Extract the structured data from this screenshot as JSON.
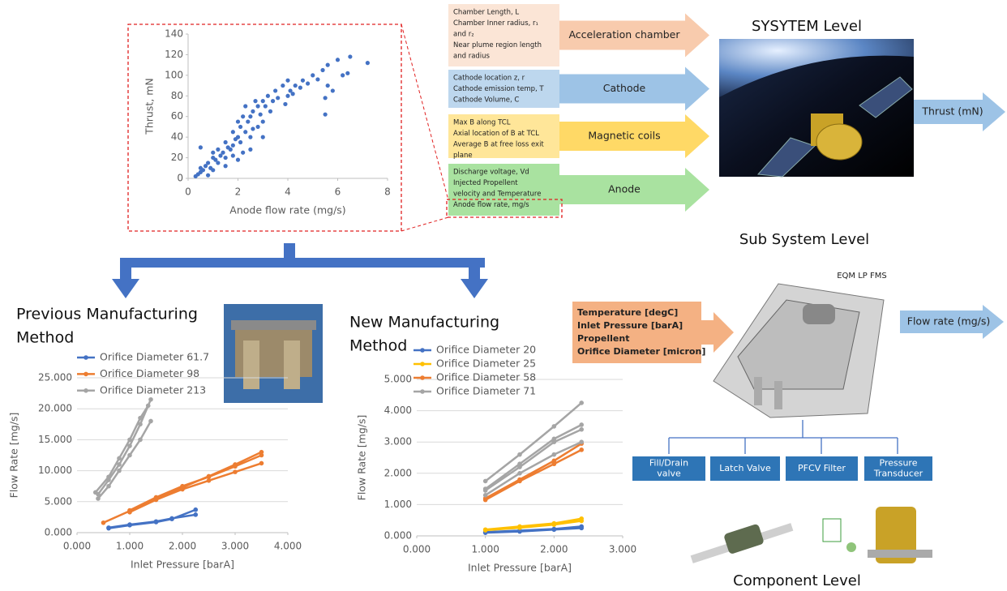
{
  "chart_data": [
    {
      "type": "scatter",
      "x_label": "Anode flow rate (mg/s)",
      "y_label": "Thrust, mN",
      "color": "#4472c4",
      "grid": false,
      "x": [
        0.3,
        0.4,
        0.5,
        0.5,
        0.6,
        0.7,
        0.8,
        0.9,
        1.0,
        1.0,
        1.1,
        1.2,
        1.2,
        1.3,
        1.4,
        1.5,
        1.5,
        1.6,
        1.7,
        1.8,
        1.8,
        1.9,
        2.0,
        2.0,
        2.1,
        2.1,
        2.2,
        2.3,
        2.3,
        2.4,
        2.5,
        2.5,
        2.6,
        2.7,
        2.8,
        2.8,
        2.9,
        3.0,
        3.0,
        3.1,
        3.2,
        3.3,
        3.4,
        3.5,
        3.6,
        3.8,
        3.9,
        4.0,
        4.0,
        4.1,
        4.2,
        4.3,
        4.5,
        4.6,
        4.8,
        5.0,
        5.2,
        5.4,
        5.5,
        5.5,
        5.6,
        5.6,
        5.8,
        6.0,
        6.2,
        6.4,
        6.5,
        7.2,
        0.5,
        0.8,
        1.0,
        1.5,
        2.0,
        2.5,
        3.0,
        2.2,
        1.8,
        2.6
      ],
      "values": [
        2,
        4,
        6,
        10,
        8,
        12,
        15,
        10,
        20,
        25,
        18,
        15,
        28,
        22,
        25,
        20,
        35,
        30,
        28,
        32,
        45,
        38,
        40,
        55,
        50,
        35,
        60,
        45,
        70,
        55,
        60,
        40,
        65,
        75,
        50,
        70,
        62,
        75,
        55,
        70,
        80,
        65,
        75,
        85,
        78,
        90,
        72,
        95,
        80,
        85,
        82,
        90,
        88,
        95,
        92,
        100,
        96,
        105,
        78,
        62,
        110,
        90,
        85,
        115,
        100,
        102,
        118,
        112,
        30,
        3,
        8,
        12,
        18,
        28,
        40,
        25,
        22,
        48
      ],
      "xlim": [
        0,
        8
      ],
      "xticks": [
        0,
        2,
        4,
        6,
        8
      ],
      "ylim": [
        0,
        140
      ],
      "yticks": [
        0,
        20,
        40,
        60,
        80,
        100,
        120,
        140
      ]
    },
    {
      "type": "line",
      "title": [
        "Previous  Manufacturing",
        "Method"
      ],
      "x_label": "Inlet Pressure [barA]",
      "y_label": "Flow Rate [mg/s]",
      "grid": true,
      "legend": "top",
      "xlim": [
        0,
        4
      ],
      "xticks": [
        {
          "value": 0,
          "label": "0.000"
        },
        {
          "value": 1,
          "label": "1.000"
        },
        {
          "value": 2,
          "label": "2.000"
        },
        {
          "value": 3,
          "label": "3.000"
        },
        {
          "value": 4,
          "label": "4.000"
        }
      ],
      "ylim": [
        0,
        25
      ],
      "yticks": [
        {
          "value": 0,
          "label": "0.000"
        },
        {
          "value": 5,
          "label": "5.000"
        },
        {
          "value": 10,
          "label": "10.000"
        },
        {
          "value": 15,
          "label": "15.000"
        },
        {
          "value": 20,
          "label": "20.000"
        },
        {
          "value": 25,
          "label": "25.000"
        }
      ],
      "series": [
        {
          "name": "Orifice Diameter 61.7",
          "color": "#4472c4",
          "x": [
            0.6,
            1.0,
            1.5,
            1.8,
            2.25,
            null,
            0.6,
            1.0,
            1.5,
            1.8,
            2.25
          ],
          "values": [
            0.8,
            1.3,
            1.8,
            2.3,
            2.9,
            null,
            0.7,
            1.2,
            1.7,
            2.2,
            3.7
          ]
        },
        {
          "name": "Orifice Diameter 98",
          "color": "#ed7d31",
          "x": [
            0.5,
            1.0,
            1.5,
            2.0,
            2.5,
            3.0,
            3.5,
            null,
            1.0,
            1.5,
            2.0,
            2.5,
            3.0,
            3.5,
            null,
            1.0,
            1.5,
            2.0,
            2.5,
            3.0,
            3.5
          ],
          "values": [
            1.6,
            3.5,
            5.5,
            7.3,
            9.1,
            11.0,
            13.0,
            null,
            3.3,
            5.3,
            7.0,
            8.4,
            9.8,
            11.2,
            null,
            3.6,
            5.7,
            7.5,
            9.0,
            10.7,
            12.5
          ]
        },
        {
          "name": "Orifice Diameter 213",
          "color": "#a5a5a5",
          "x": [
            0.4,
            0.6,
            0.8,
            1.0,
            1.2,
            1.4,
            null,
            0.4,
            0.6,
            0.8,
            1.0,
            1.2,
            1.4,
            null,
            0.35,
            0.6,
            0.8,
            1.0,
            1.2,
            1.35
          ],
          "values": [
            6.2,
            8.5,
            11,
            14,
            17.5,
            21.5,
            null,
            5.5,
            7.5,
            10,
            12.5,
            15,
            18,
            null,
            6.5,
            9,
            12,
            15,
            18.5,
            20.5
          ]
        }
      ]
    },
    {
      "type": "line",
      "title": [
        "New Manufacturing",
        "Method"
      ],
      "x_label": "Inlet Pressure [barA]",
      "y_label": "Flow Rate [mg/s]",
      "grid": true,
      "legend": "top",
      "xlim": [
        0,
        3
      ],
      "xticks": [
        {
          "value": 0,
          "label": "0.000"
        },
        {
          "value": 1,
          "label": "1.000"
        },
        {
          "value": 2,
          "label": "2.000"
        },
        {
          "value": 3,
          "label": "3.000"
        }
      ],
      "ylim": [
        0,
        5
      ],
      "yticks": [
        {
          "value": 0,
          "label": "0.000"
        },
        {
          "value": 1,
          "label": "1.000"
        },
        {
          "value": 2,
          "label": "2.000"
        },
        {
          "value": 3,
          "label": "3.000"
        },
        {
          "value": 4,
          "label": "4.000"
        },
        {
          "value": 5,
          "label": "5.000"
        }
      ],
      "series": [
        {
          "name": "Orifice Diameter 20",
          "color": "#4472c4",
          "x": [
            1.0,
            1.5,
            2.0,
            2.4,
            null,
            1.0,
            1.5,
            2.0,
            2.4
          ],
          "values": [
            0.1,
            0.14,
            0.2,
            0.25,
            null,
            0.12,
            0.17,
            0.22,
            0.3
          ]
        },
        {
          "name": "Orifice Diameter 25",
          "color": "#ffc000",
          "x": [
            1.0,
            1.5,
            2.0,
            2.4,
            null,
            1.0,
            1.5,
            2.0,
            2.4
          ],
          "values": [
            0.2,
            0.3,
            0.4,
            0.55,
            null,
            0.18,
            0.26,
            0.36,
            0.48
          ]
        },
        {
          "name": "Orifice Diameter 58",
          "color": "#ed7d31",
          "x": [
            1.0,
            1.5,
            2.0,
            2.4,
            null,
            1.0,
            1.5,
            2.0,
            2.4
          ],
          "values": [
            1.15,
            1.75,
            2.3,
            2.75,
            null,
            1.2,
            1.8,
            2.4,
            2.95
          ]
        },
        {
          "name": "Orifice Diameter 71",
          "color": "#a5a5a5",
          "x": [
            1.0,
            1.5,
            2.0,
            2.4,
            null,
            1.0,
            1.5,
            2.0,
            2.4,
            null,
            1.0,
            1.5,
            2.0,
            2.4,
            null,
            1.0,
            1.5,
            2.0,
            2.4
          ],
          "values": [
            1.75,
            2.6,
            3.5,
            4.25,
            null,
            1.5,
            2.3,
            3.1,
            3.55,
            null,
            1.3,
            2.0,
            2.6,
            3.0,
            null,
            1.45,
            2.2,
            3.0,
            3.4
          ]
        }
      ]
    }
  ],
  "diagram": {
    "system_level": "SYSYTEM Level",
    "subsystem_level": "Sub System Level",
    "component_level": "Component Level",
    "thrust_output": "Thrust (mN)",
    "flow_output": "Flow rate (mg/s)",
    "fms_label": "EQM LP FMS",
    "inputs": [
      {
        "params": [
          "Chamber Length, L",
          "Chamber Inner radius, r₁",
          "and r₂",
          "Near plume region length",
          "and radius"
        ],
        "label": "Acceleration chamber"
      },
      {
        "params": [
          "Cathode location z, r",
          "Cathode emission temp, T",
          "Cathode Volume, C"
        ],
        "label": "Cathode"
      },
      {
        "params": [
          "Max B along TCL",
          "Axial location of B at TCL",
          "Average B at free loss exit",
          "plane"
        ],
        "label": "Magnetic coils"
      },
      {
        "params": [
          "Discharge voltage, Vd",
          "Injected Propellent",
          "velocity and Temperature",
          "Anode flow rate, mg/s"
        ],
        "label": "Anode"
      }
    ],
    "fms_inputs": [
      "Temperature [degC]",
      "Inlet Pressure [barA]",
      "Propellent",
      "Orifice Diameter [micron]"
    ],
    "components": [
      [
        "Fill/Drain",
        "valve"
      ],
      [
        "Latch Valve"
      ],
      [
        "PFCV Filter"
      ],
      [
        "Pressure",
        "Transducer"
      ]
    ]
  }
}
